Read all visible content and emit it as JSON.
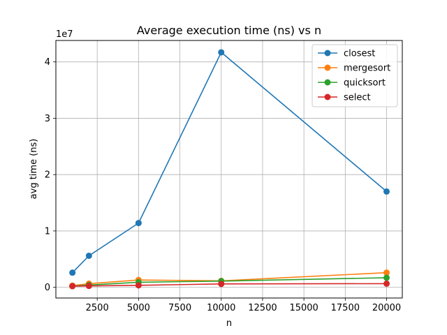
{
  "chart_data": {
    "type": "line",
    "title": "Average execution time (ns) vs n",
    "xlabel": "n",
    "ylabel": "avg time (ns)",
    "y_offset_text": "1e7",
    "xlim": [
      0,
      20950
    ],
    "ylim": [
      -1900000,
      43800000
    ],
    "x_ticks": [
      2500,
      5000,
      7500,
      10000,
      12500,
      15000,
      17500,
      20000
    ],
    "x_tick_labels": [
      "2500",
      "5000",
      "7500",
      "10000",
      "12500",
      "15000",
      "17500",
      "20000"
    ],
    "y_ticks": [
      0,
      10000000,
      20000000,
      30000000,
      40000000
    ],
    "y_tick_labels": [
      "0",
      "1",
      "2",
      "3",
      "4"
    ],
    "grid": true,
    "legend_position": "top-right",
    "x": [
      1000,
      2000,
      5000,
      10000,
      20000
    ],
    "series": [
      {
        "name": "closest",
        "color": "#1f77b4",
        "values": [
          2600000,
          5600000,
          11400000,
          41700000,
          17000000
        ]
      },
      {
        "name": "mergesort",
        "color": "#ff7f0e",
        "values": [
          300000,
          650000,
          1300000,
          1150000,
          2600000
        ]
      },
      {
        "name": "quicksort",
        "color": "#2ca02c",
        "values": [
          200000,
          400000,
          900000,
          1100000,
          1700000
        ]
      },
      {
        "name": "select",
        "color": "#d62728",
        "values": [
          200000,
          250000,
          350000,
          600000,
          650000
        ]
      }
    ]
  }
}
